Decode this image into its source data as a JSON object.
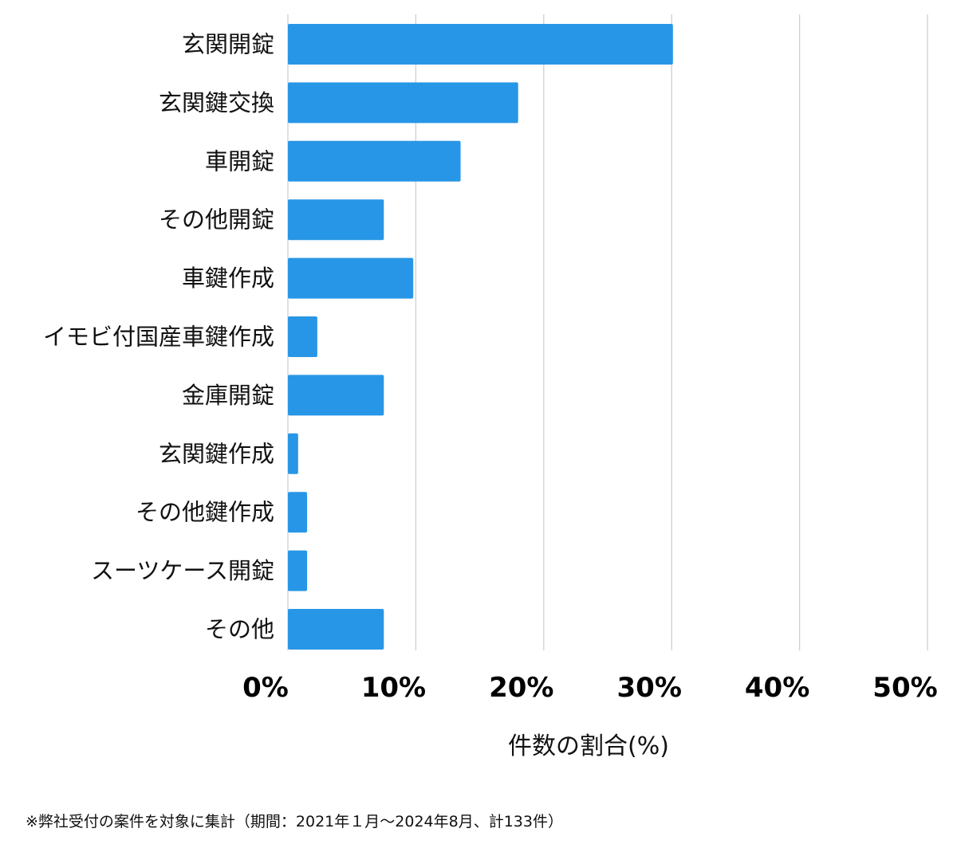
{
  "chart_data": {
    "type": "bar",
    "orientation": "horizontal",
    "categories": [
      "玄関開錠",
      "玄関鍵交換",
      "車開錠",
      "その他開錠",
      "車鍵作成",
      "イモビ付国産車鍵作成",
      "金庫開錠",
      "玄関鍵作成",
      "その他鍵作成",
      "スーツケース開錠",
      "その他"
    ],
    "values": [
      30.1,
      18.0,
      13.5,
      7.5,
      9.8,
      2.3,
      7.5,
      0.8,
      1.5,
      1.5,
      7.5
    ],
    "xlabel": "件数の割合(%)",
    "ylabel": "",
    "xlim": [
      0,
      50
    ],
    "xticks": [
      {
        "value": 0,
        "label": "0%"
      },
      {
        "value": 10,
        "label": "10%"
      },
      {
        "value": 20,
        "label": "20%"
      },
      {
        "value": 30,
        "label": "30%"
      },
      {
        "value": 40,
        "label": "40%"
      },
      {
        "value": 50,
        "label": "50%"
      }
    ],
    "grid": "vertical",
    "bar_color": "#2896e6"
  },
  "footnote": "※弊社受付の案件を対象に集計（期間：2021年１月〜2024年8月、計133件）"
}
